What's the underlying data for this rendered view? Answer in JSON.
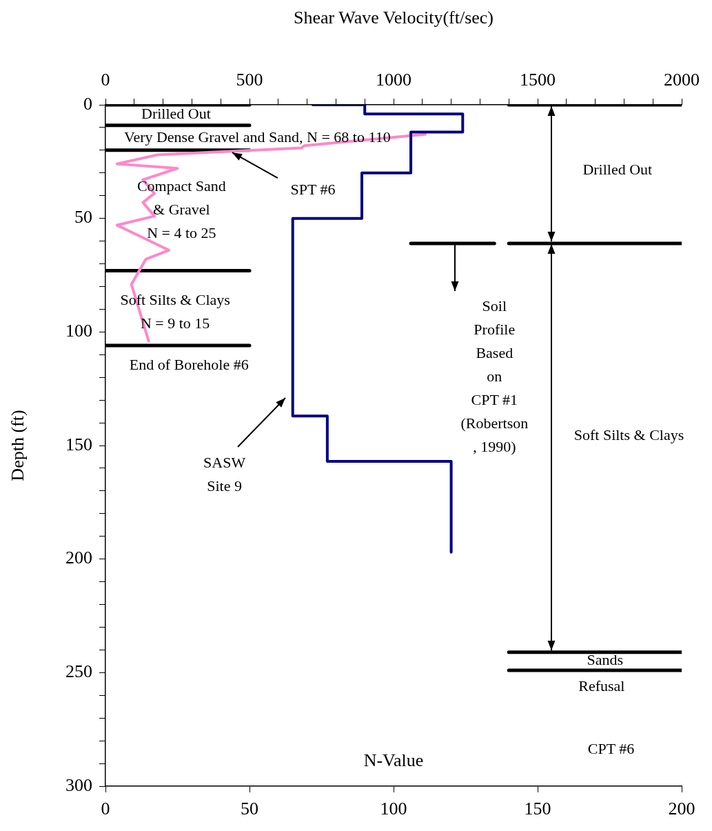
{
  "chart_data": {
    "type": "line",
    "xlabel": "N-Value",
    "x2label": "Shear Wave Velocity(ft/sec)",
    "ylabel": "Depth (ft)",
    "xlim": [
      0,
      200
    ],
    "xticks": [
      0,
      50,
      100,
      150,
      200
    ],
    "x2lim": [
      0,
      2000
    ],
    "x2ticks": [
      0,
      {
        "value": 100,
        "label": null
      },
      {
        "value": 200,
        "label": null
      },
      {
        "value": 300,
        "label": null
      },
      {
        "value": 400,
        "label": null
      },
      500,
      {
        "value": 600,
        "label": null
      },
      {
        "value": 700,
        "label": null
      },
      {
        "value": 800,
        "label": null
      },
      {
        "value": 900,
        "label": null
      },
      1000,
      {
        "value": 1100,
        "label": null
      },
      {
        "value": 1200,
        "label": null
      },
      {
        "value": 1300,
        "label": null
      },
      {
        "value": 1400,
        "label": null
      },
      1500,
      {
        "value": 1600,
        "label": null
      },
      {
        "value": 1700,
        "label": null
      },
      {
        "value": 1800,
        "label": null
      },
      {
        "value": 1900,
        "label": null
      },
      2000
    ],
    "ylim": [
      300,
      0
    ],
    "yticks": [
      0,
      {
        "value": 10,
        "label": null
      },
      {
        "value": 20,
        "label": null
      },
      {
        "value": 30,
        "label": null
      },
      {
        "value": 40,
        "label": null
      },
      50,
      {
        "value": 60,
        "label": null
      },
      {
        "value": 70,
        "label": null
      },
      {
        "value": 80,
        "label": null
      },
      {
        "value": 90,
        "label": null
      },
      100,
      {
        "value": 110,
        "label": null
      },
      {
        "value": 120,
        "label": null
      },
      {
        "value": 130,
        "label": null
      },
      {
        "value": 140,
        "label": null
      },
      150,
      {
        "value": 160,
        "label": null
      },
      {
        "value": 170,
        "label": null
      },
      {
        "value": 180,
        "label": null
      },
      {
        "value": 190,
        "label": null
      },
      200,
      {
        "value": 210,
        "label": null
      },
      {
        "value": 220,
        "label": null
      },
      {
        "value": 230,
        "label": null
      },
      {
        "value": 240,
        "label": null
      },
      250,
      {
        "value": 260,
        "label": null
      },
      {
        "value": 270,
        "label": null
      },
      {
        "value": 280,
        "label": null
      },
      {
        "value": 290,
        "label": null
      },
      300
    ],
    "legend": false,
    "series": [
      {
        "type": "line",
        "axis": "x2",
        "color": "#000080",
        "x": [
          720,
          900,
          900,
          1240,
          1240,
          1060,
          1060,
          890,
          890,
          650,
          650,
          770,
          770,
          1200,
          1200
        ],
        "values": [
          0,
          0,
          4,
          4,
          12,
          12,
          30,
          30,
          50,
          50,
          137,
          137,
          157,
          157,
          197
        ]
      },
      {
        "type": "line",
        "color": "#ff88c8",
        "x": [
          111,
          69,
          68,
          18,
          4,
          25,
          13,
          17,
          13,
          17,
          4,
          22,
          14,
          9,
          15
        ],
        "values": [
          13,
          18,
          19,
          22,
          26,
          28,
          33,
          39,
          43,
          49,
          53,
          64,
          68,
          79,
          104
        ]
      },
      {
        "type": "line",
        "color": "#000000",
        "x": [
          0,
          50
        ],
        "values": [
          0,
          0
        ]
      },
      {
        "type": "line",
        "color": "#000000",
        "x": [
          0,
          50
        ],
        "values": [
          9,
          9
        ]
      },
      {
        "type": "line",
        "color": "#000000",
        "x": [
          0,
          50
        ],
        "values": [
          20,
          20
        ]
      },
      {
        "type": "line",
        "color": "#000000",
        "x": [
          0,
          50
        ],
        "values": [
          73,
          73
        ]
      },
      {
        "type": "line",
        "color": "#000000",
        "x": [
          0,
          50
        ],
        "values": [
          106,
          106
        ]
      },
      {
        "type": "line",
        "axis": "x2",
        "color": "#000000",
        "x": [
          1060,
          1350
        ],
        "values": [
          61,
          61
        ]
      },
      {
        "type": "line",
        "axis": "x2",
        "color": "#000000",
        "x": [
          1400,
          2000
        ],
        "values": [
          0,
          0
        ]
      },
      {
        "type": "line",
        "axis": "x2",
        "color": "#000000",
        "x": [
          1400,
          2000
        ],
        "values": [
          61,
          61
        ]
      },
      {
        "type": "line",
        "axis": "x2",
        "color": "#000000",
        "x": [
          1400,
          2000
        ],
        "values": [
          241,
          241
        ]
      },
      {
        "type": "line",
        "axis": "x2",
        "color": "#000000",
        "x": [
          1400,
          2000
        ],
        "values": [
          249,
          249
        ]
      }
    ],
    "annotations": [
      "Drilled Out",
      "Very Dense Gravel and Sand, N = 68 to 110",
      "Compact Sand\n& Gravel\nN = 4 to 25",
      "Soft Silts & Clays\nN = 9 to 15",
      "End of Borehole #6",
      {
        "text": "SPT #6",
        "x": 44,
        "y": 21
      },
      "SASW\nSite 9",
      "Soil\nProfile\nBased\non\nCPT #1\n(Robertson\n, 1990)",
      "Drilled Out",
      "Soft Silts & Clays",
      "Sands",
      "Refusal",
      "CPT #6"
    ]
  }
}
